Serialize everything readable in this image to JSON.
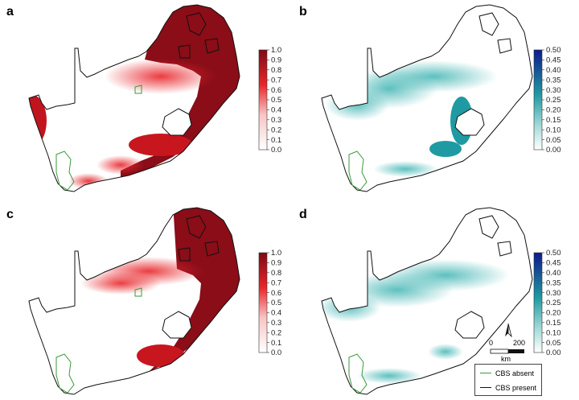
{
  "panels": [
    {
      "label": "a",
      "scale": "red",
      "colorbar_ticks": [
        "1.0",
        "0.9",
        "0.8",
        "0.7",
        "0.6",
        "0.5",
        "0.4",
        "0.3",
        "0.2",
        "0.1",
        "0.0"
      ]
    },
    {
      "label": "b",
      "scale": "teal",
      "colorbar_ticks": [
        "0.50",
        "0.45",
        "0.40",
        "0.35",
        "0.30",
        "0.25",
        "0.20",
        "0.15",
        "0.10",
        "0.05",
        "0.00"
      ]
    },
    {
      "label": "c",
      "scale": "red",
      "colorbar_ticks": [
        "1.0",
        "0.9",
        "0.8",
        "0.7",
        "0.6",
        "0.5",
        "0.4",
        "0.3",
        "0.2",
        "0.1",
        "0.0"
      ]
    },
    {
      "label": "d",
      "scale": "teal",
      "colorbar_ticks": [
        "0.50",
        "0.45",
        "0.40",
        "0.35",
        "0.30",
        "0.25",
        "0.20",
        "0.15",
        "0.10",
        "0.05",
        "0.00"
      ]
    }
  ],
  "colors": {
    "red_low": "#ffffff",
    "red_mid": "#e8262b",
    "red_high": "#7e0a14",
    "teal_low": "#ffffff",
    "teal_mid": "#3fb3b3",
    "teal_high": "#0d1a8c",
    "cbs_absent": "#3a9a3a",
    "cbs_present": "#111111"
  },
  "scalebar": {
    "start": "0",
    "end": "200",
    "unit": "km",
    "north_icon": "north-arrow-icon"
  },
  "legend": {
    "absent": "CBS absent",
    "present": "CBS present"
  }
}
